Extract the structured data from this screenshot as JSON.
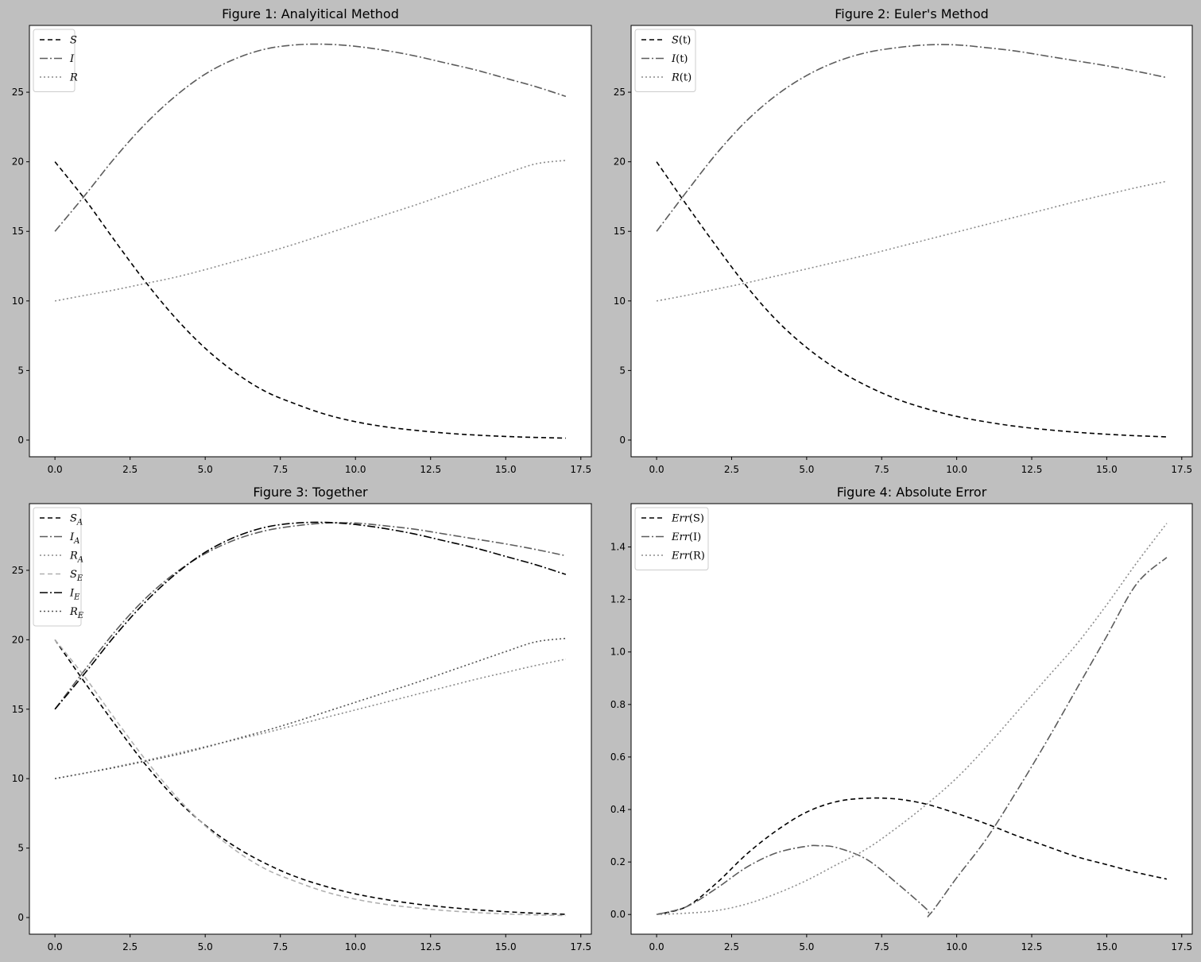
{
  "chart_data": [
    {
      "type": "line",
      "title": "Figure 1: Analyitical Method",
      "xlabel": "",
      "ylabel": "",
      "xlim": [
        -0.85,
        17.85
      ],
      "ylim": [
        -1.2,
        29.8
      ],
      "xticks": [
        0.0,
        2.5,
        5.0,
        7.5,
        10.0,
        12.5,
        15.0,
        17.5
      ],
      "xtick_labels": [
        "0.0",
        "2.5",
        "5.0",
        "7.5",
        "10.0",
        "12.5",
        "15.0",
        "17.5"
      ],
      "yticks": [
        0,
        5,
        10,
        15,
        20,
        25
      ],
      "ytick_labels": [
        "0",
        "5",
        "10",
        "15",
        "20",
        "25"
      ],
      "grid": false,
      "legend_position": "top-left",
      "series": [
        {
          "name": "S",
          "label": {
            "main": "S",
            "suffix": "",
            "sub": ""
          },
          "color": "#000000",
          "dash": "6,4",
          "width": 1.6,
          "x": [
            0,
            1,
            2,
            3,
            4,
            5,
            6,
            7,
            8,
            9,
            10,
            11,
            12,
            13,
            14,
            15,
            16,
            17
          ],
          "y": [
            20.0,
            17.3,
            14.3,
            11.4,
            8.8,
            6.6,
            4.85,
            3.5,
            2.6,
            1.85,
            1.32,
            0.95,
            0.7,
            0.5,
            0.36,
            0.26,
            0.19,
            0.14
          ]
        },
        {
          "name": "I",
          "label": {
            "main": "I",
            "suffix": "",
            "sub": ""
          },
          "color": "#5c5c5c",
          "dash": "10,3,2,3",
          "width": 1.6,
          "x": [
            0,
            1,
            2,
            3,
            4,
            5,
            6,
            7,
            8,
            9,
            10,
            11,
            12,
            13,
            14,
            15,
            16,
            17
          ],
          "y": [
            15.0,
            17.6,
            20.3,
            22.7,
            24.7,
            26.3,
            27.4,
            28.1,
            28.4,
            28.45,
            28.3,
            28.0,
            27.6,
            27.1,
            26.6,
            26.0,
            25.4,
            24.7
          ]
        },
        {
          "name": "R",
          "label": {
            "main": "R",
            "suffix": "",
            "sub": ""
          },
          "color": "#8c8c8c",
          "dash": "2,3",
          "width": 1.6,
          "x": [
            0,
            1,
            2,
            3,
            4,
            5,
            6,
            7,
            8,
            9,
            10,
            11,
            12,
            13,
            14,
            15,
            16,
            17
          ],
          "y": [
            10.0,
            10.4,
            10.8,
            11.25,
            11.7,
            12.25,
            12.85,
            13.45,
            14.1,
            14.8,
            15.5,
            16.2,
            16.9,
            17.65,
            18.4,
            19.15,
            19.85,
            20.1
          ]
        }
      ]
    },
    {
      "type": "line",
      "title": "Figure 2: Euler's Method",
      "xlabel": "",
      "ylabel": "",
      "xlim": [
        -0.85,
        17.85
      ],
      "ylim": [
        -1.2,
        29.8
      ],
      "xticks": [
        0.0,
        2.5,
        5.0,
        7.5,
        10.0,
        12.5,
        15.0,
        17.5
      ],
      "xtick_labels": [
        "0.0",
        "2.5",
        "5.0",
        "7.5",
        "10.0",
        "12.5",
        "15.0",
        "17.5"
      ],
      "yticks": [
        0,
        5,
        10,
        15,
        20,
        25
      ],
      "ytick_labels": [
        "0",
        "5",
        "10",
        "15",
        "20",
        "25"
      ],
      "grid": false,
      "legend_position": "top-left",
      "series": [
        {
          "name": "S(t)",
          "label": {
            "main": "S",
            "suffix": "(t)",
            "sub": ""
          },
          "color": "#000000",
          "dash": "6,4",
          "width": 1.6,
          "x": [
            0,
            1,
            2,
            3,
            4,
            5,
            6,
            7,
            8,
            9,
            10,
            11,
            12,
            13,
            14,
            15,
            16,
            17
          ],
          "y": [
            20.0,
            16.9,
            13.9,
            11.05,
            8.6,
            6.65,
            5.1,
            3.9,
            2.95,
            2.25,
            1.7,
            1.3,
            0.98,
            0.75,
            0.56,
            0.42,
            0.31,
            0.23
          ]
        },
        {
          "name": "I(t)",
          "label": {
            "main": "I",
            "suffix": "(t)",
            "sub": ""
          },
          "color": "#5c5c5c",
          "dash": "10,3,2,3",
          "width": 1.6,
          "x": [
            0,
            1,
            2,
            3,
            4,
            5,
            6,
            7,
            8,
            9,
            10,
            11,
            12,
            13,
            14,
            15,
            16,
            17
          ],
          "y": [
            15.0,
            17.85,
            20.6,
            22.95,
            24.8,
            26.2,
            27.2,
            27.85,
            28.2,
            28.4,
            28.4,
            28.2,
            27.95,
            27.6,
            27.25,
            26.9,
            26.5,
            26.05
          ]
        },
        {
          "name": "R(t)",
          "label": {
            "main": "R",
            "suffix": "(t)",
            "sub": ""
          },
          "color": "#8c8c8c",
          "dash": "2,3",
          "width": 1.6,
          "x": [
            0,
            1,
            2,
            3,
            4,
            5,
            6,
            7,
            8,
            9,
            10,
            11,
            12,
            13,
            14,
            15,
            16,
            17
          ],
          "y": [
            10.0,
            10.4,
            10.85,
            11.3,
            11.8,
            12.3,
            12.8,
            13.3,
            13.85,
            14.4,
            14.95,
            15.5,
            16.05,
            16.6,
            17.15,
            17.65,
            18.15,
            18.6
          ]
        }
      ]
    },
    {
      "type": "line",
      "title": "Figure 3: Together",
      "xlabel": "",
      "ylabel": "",
      "xlim": [
        -0.85,
        17.85
      ],
      "ylim": [
        -1.2,
        29.8
      ],
      "xticks": [
        0.0,
        2.5,
        5.0,
        7.5,
        10.0,
        12.5,
        15.0,
        17.5
      ],
      "xtick_labels": [
        "0.0",
        "2.5",
        "5.0",
        "7.5",
        "10.0",
        "12.5",
        "15.0",
        "17.5"
      ],
      "yticks": [
        0,
        5,
        10,
        15,
        20,
        25
      ],
      "ytick_labels": [
        "0",
        "5",
        "10",
        "15",
        "20",
        "25"
      ],
      "grid": false,
      "legend_position": "top-left",
      "series": [
        {
          "name": "S_A",
          "label": {
            "main": "S",
            "suffix": "",
            "sub": "A"
          },
          "color": "#000000",
          "dash": "6,4",
          "width": 1.6,
          "x": [
            0,
            1,
            2,
            3,
            4,
            5,
            6,
            7,
            8,
            9,
            10,
            11,
            12,
            13,
            14,
            15,
            16,
            17
          ],
          "y": [
            20.0,
            16.9,
            13.9,
            11.05,
            8.6,
            6.65,
            5.1,
            3.9,
            2.95,
            2.25,
            1.7,
            1.3,
            0.98,
            0.75,
            0.56,
            0.42,
            0.31,
            0.23
          ]
        },
        {
          "name": "I_A",
          "label": {
            "main": "I",
            "suffix": "",
            "sub": "A"
          },
          "color": "#5c5c5c",
          "dash": "10,3,2,3",
          "width": 1.6,
          "x": [
            0,
            1,
            2,
            3,
            4,
            5,
            6,
            7,
            8,
            9,
            10,
            11,
            12,
            13,
            14,
            15,
            16,
            17
          ],
          "y": [
            15.0,
            17.85,
            20.6,
            22.95,
            24.8,
            26.2,
            27.2,
            27.85,
            28.2,
            28.4,
            28.4,
            28.2,
            27.95,
            27.6,
            27.25,
            26.9,
            26.5,
            26.05
          ]
        },
        {
          "name": "R_A",
          "label": {
            "main": "R",
            "suffix": "",
            "sub": "A"
          },
          "color": "#8c8c8c",
          "dash": "2,3",
          "width": 1.6,
          "x": [
            0,
            1,
            2,
            3,
            4,
            5,
            6,
            7,
            8,
            9,
            10,
            11,
            12,
            13,
            14,
            15,
            16,
            17
          ],
          "y": [
            10.0,
            10.4,
            10.85,
            11.3,
            11.8,
            12.3,
            12.8,
            13.3,
            13.85,
            14.4,
            14.95,
            15.5,
            16.05,
            16.6,
            17.15,
            17.65,
            18.15,
            18.6
          ]
        },
        {
          "name": "S_E",
          "label": {
            "main": "S",
            "suffix": "",
            "sub": "E"
          },
          "color": "#b0b0b0",
          "dash": "6,4",
          "width": 1.6,
          "x": [
            0,
            1,
            2,
            3,
            4,
            5,
            6,
            7,
            8,
            9,
            10,
            11,
            12,
            13,
            14,
            15,
            16,
            17
          ],
          "y": [
            20.0,
            17.3,
            14.3,
            11.4,
            8.8,
            6.6,
            4.85,
            3.5,
            2.6,
            1.85,
            1.32,
            0.95,
            0.7,
            0.5,
            0.36,
            0.26,
            0.19,
            0.14
          ]
        },
        {
          "name": "I_E",
          "label": {
            "main": "I",
            "suffix": "",
            "sub": "E"
          },
          "color": "#000000",
          "dash": "10,3,2,3",
          "width": 1.6,
          "x": [
            0,
            1,
            2,
            3,
            4,
            5,
            6,
            7,
            8,
            9,
            10,
            11,
            12,
            13,
            14,
            15,
            16,
            17
          ],
          "y": [
            15.0,
            17.6,
            20.3,
            22.7,
            24.7,
            26.3,
            27.4,
            28.1,
            28.4,
            28.45,
            28.3,
            28.0,
            27.6,
            27.1,
            26.6,
            26.0,
            25.4,
            24.7
          ]
        },
        {
          "name": "R_E",
          "label": {
            "main": "R",
            "suffix": "",
            "sub": "E"
          },
          "color": "#555555",
          "dash": "2,3",
          "width": 1.6,
          "x": [
            0,
            1,
            2,
            3,
            4,
            5,
            6,
            7,
            8,
            9,
            10,
            11,
            12,
            13,
            14,
            15,
            16,
            17
          ],
          "y": [
            10.0,
            10.4,
            10.8,
            11.25,
            11.7,
            12.25,
            12.85,
            13.45,
            14.1,
            14.8,
            15.5,
            16.2,
            16.9,
            17.65,
            18.4,
            19.15,
            19.85,
            20.1
          ]
        }
      ]
    },
    {
      "type": "line",
      "title": "Figure 4: Absolute Error",
      "xlabel": "",
      "ylabel": "",
      "xlim": [
        -0.85,
        17.85
      ],
      "ylim": [
        -0.075,
        1.565
      ],
      "xticks": [
        0.0,
        2.5,
        5.0,
        7.5,
        10.0,
        12.5,
        15.0,
        17.5
      ],
      "xtick_labels": [
        "0.0",
        "2.5",
        "5.0",
        "7.5",
        "10.0",
        "12.5",
        "15.0",
        "17.5"
      ],
      "yticks": [
        0.0,
        0.2,
        0.4,
        0.6,
        0.8,
        1.0,
        1.2,
        1.4
      ],
      "ytick_labels": [
        "0.0",
        "0.2",
        "0.4",
        "0.6",
        "0.8",
        "1.0",
        "1.2",
        "1.4"
      ],
      "grid": false,
      "legend_position": "top-left",
      "series": [
        {
          "name": "Err(S)",
          "label": {
            "main": "Err",
            "suffix": "(S)",
            "sub": ""
          },
          "color": "#000000",
          "dash": "6,4",
          "width": 1.6,
          "x": [
            0,
            1,
            2,
            3,
            4,
            5,
            6,
            7,
            8,
            9,
            10,
            11,
            12,
            13,
            14,
            15,
            16,
            17
          ],
          "y": [
            0.0,
            0.03,
            0.12,
            0.23,
            0.32,
            0.39,
            0.43,
            0.443,
            0.44,
            0.42,
            0.385,
            0.345,
            0.3,
            0.26,
            0.22,
            0.19,
            0.16,
            0.135
          ]
        },
        {
          "name": "Err(I)",
          "label": {
            "main": "Err",
            "suffix": "(I)",
            "sub": ""
          },
          "color": "#5c5c5c",
          "dash": "10,3,2,3",
          "width": 1.6,
          "x": [
            0,
            1,
            2,
            3,
            4,
            5,
            5.4,
            6,
            7,
            8,
            9,
            9.1,
            10,
            11,
            12,
            13,
            14,
            15,
            16,
            17
          ],
          "y": [
            0.0,
            0.03,
            0.1,
            0.18,
            0.235,
            0.26,
            0.262,
            0.255,
            0.21,
            0.12,
            0.02,
            0.0,
            0.14,
            0.29,
            0.47,
            0.66,
            0.86,
            1.06,
            1.26,
            1.36
          ]
        },
        {
          "name": "Err(R)",
          "label": {
            "main": "Err",
            "suffix": "(R)",
            "sub": ""
          },
          "color": "#8c8c8c",
          "dash": "2,3",
          "width": 1.6,
          "x": [
            0,
            1,
            2,
            3,
            4,
            5,
            6,
            7,
            8,
            9,
            10,
            11,
            12,
            13,
            14,
            15,
            16,
            17
          ],
          "y": [
            0.0,
            0.005,
            0.015,
            0.04,
            0.08,
            0.13,
            0.19,
            0.25,
            0.33,
            0.42,
            0.52,
            0.64,
            0.77,
            0.9,
            1.03,
            1.18,
            1.34,
            1.49
          ]
        }
      ]
    }
  ]
}
